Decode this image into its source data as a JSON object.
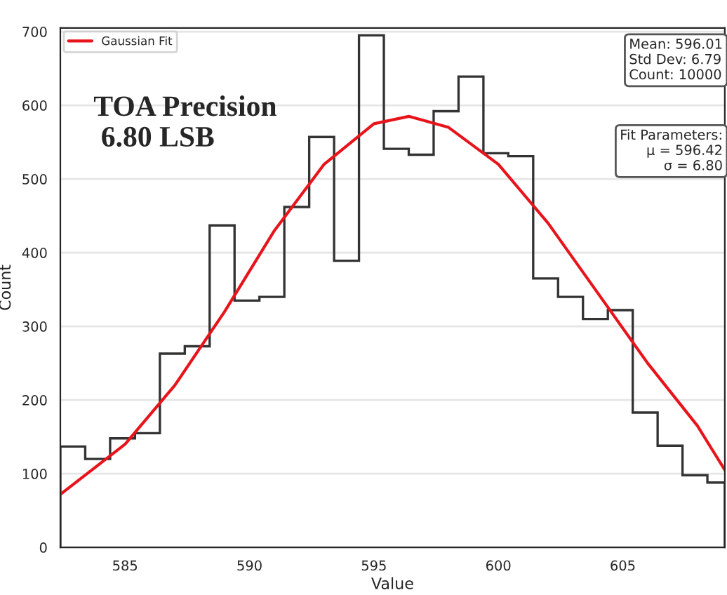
{
  "chart_data": {
    "type": "histogram",
    "xlabel": "Value",
    "ylabel": "Count",
    "bins": [
      582.4,
      583.4,
      584.4,
      585.4,
      586.4,
      587.4,
      588.4,
      589.4,
      590.4,
      591.4,
      592.4,
      593.4,
      594.4,
      595.4,
      596.4,
      597.4,
      598.4,
      599.4,
      600.4,
      601.4,
      602.4,
      603.4,
      604.4,
      605.4,
      606.4,
      607.4,
      608.4,
      609.1
    ],
    "values": [
      137,
      120,
      148,
      155,
      263,
      273,
      437,
      335,
      340,
      462,
      557,
      389,
      695,
      541,
      533,
      592,
      639,
      535,
      531,
      365,
      340,
      310,
      322,
      183,
      138,
      98,
      88
    ],
    "color": "#333333",
    "series": [
      {
        "name": "Gaussian Fit",
        "type": "line",
        "color": "#e8141c",
        "x": [
          582.4,
          585,
          587,
          589,
          591,
          593,
          595,
          596.4,
          598,
          600,
          602,
          604,
          606,
          608,
          609.1
        ],
        "values": [
          72,
          140,
          220,
          320,
          430,
          520,
          575,
          585,
          570,
          520,
          440,
          345,
          250,
          165,
          105
        ]
      }
    ],
    "xlim": [
      582.4,
      609.1
    ],
    "ylim": [
      0,
      705
    ],
    "xticks": [
      585,
      590,
      595,
      600,
      605
    ],
    "yticks": [
      0,
      100,
      200,
      300,
      400,
      500,
      600,
      700
    ],
    "grid": "y",
    "legend": "top left",
    "annotations": [
      "TOA Precision\n 6.80 LSB",
      "Mean: 596.01\nStd Dev: 6.79\nCount: 10000",
      "Fit Parameters:\nμ = 596.42\nσ = 6.80"
    ]
  }
}
